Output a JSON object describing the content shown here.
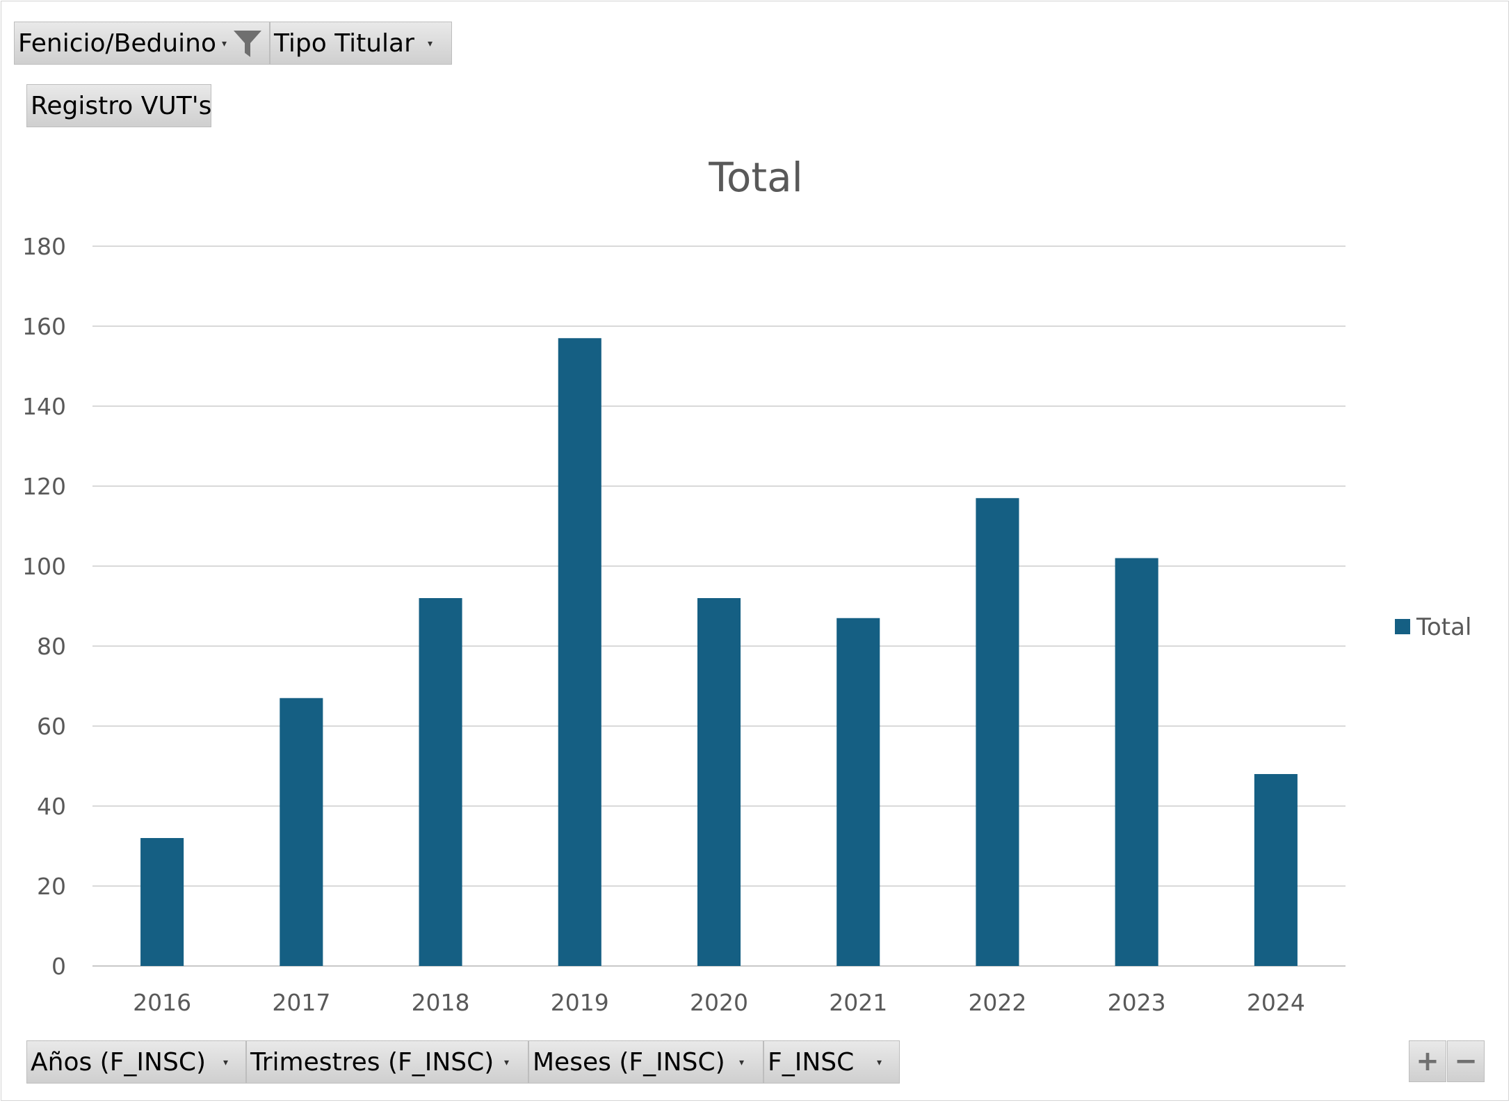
{
  "filters": {
    "top": [
      {
        "label": "Fenicio/Beduino",
        "has_filter_icon": true
      },
      {
        "label": "Tipo Titular"
      }
    ],
    "values_field": "Registro VUT's",
    "axis": [
      {
        "label": "Años (F_INSC)"
      },
      {
        "label": "Trimestres (F_INSC)"
      },
      {
        "label": "Meses (F_INSC)"
      },
      {
        "label": "F_INSC"
      }
    ]
  },
  "zoom": {
    "plus": "+",
    "minus": "−"
  },
  "chart_data": {
    "type": "bar",
    "title": "Total",
    "categories": [
      "2016",
      "2017",
      "2018",
      "2019",
      "2020",
      "2021",
      "2022",
      "2023",
      "2024"
    ],
    "series": [
      {
        "name": "Total",
        "values": [
          32,
          67,
          92,
          157,
          92,
          87,
          117,
          102,
          48
        ],
        "color": "#155F83"
      }
    ],
    "ylim": [
      0,
      180
    ],
    "yticks": [
      0,
      20,
      40,
      60,
      80,
      100,
      120,
      140,
      160,
      180
    ],
    "grid": true,
    "legend": "right"
  }
}
